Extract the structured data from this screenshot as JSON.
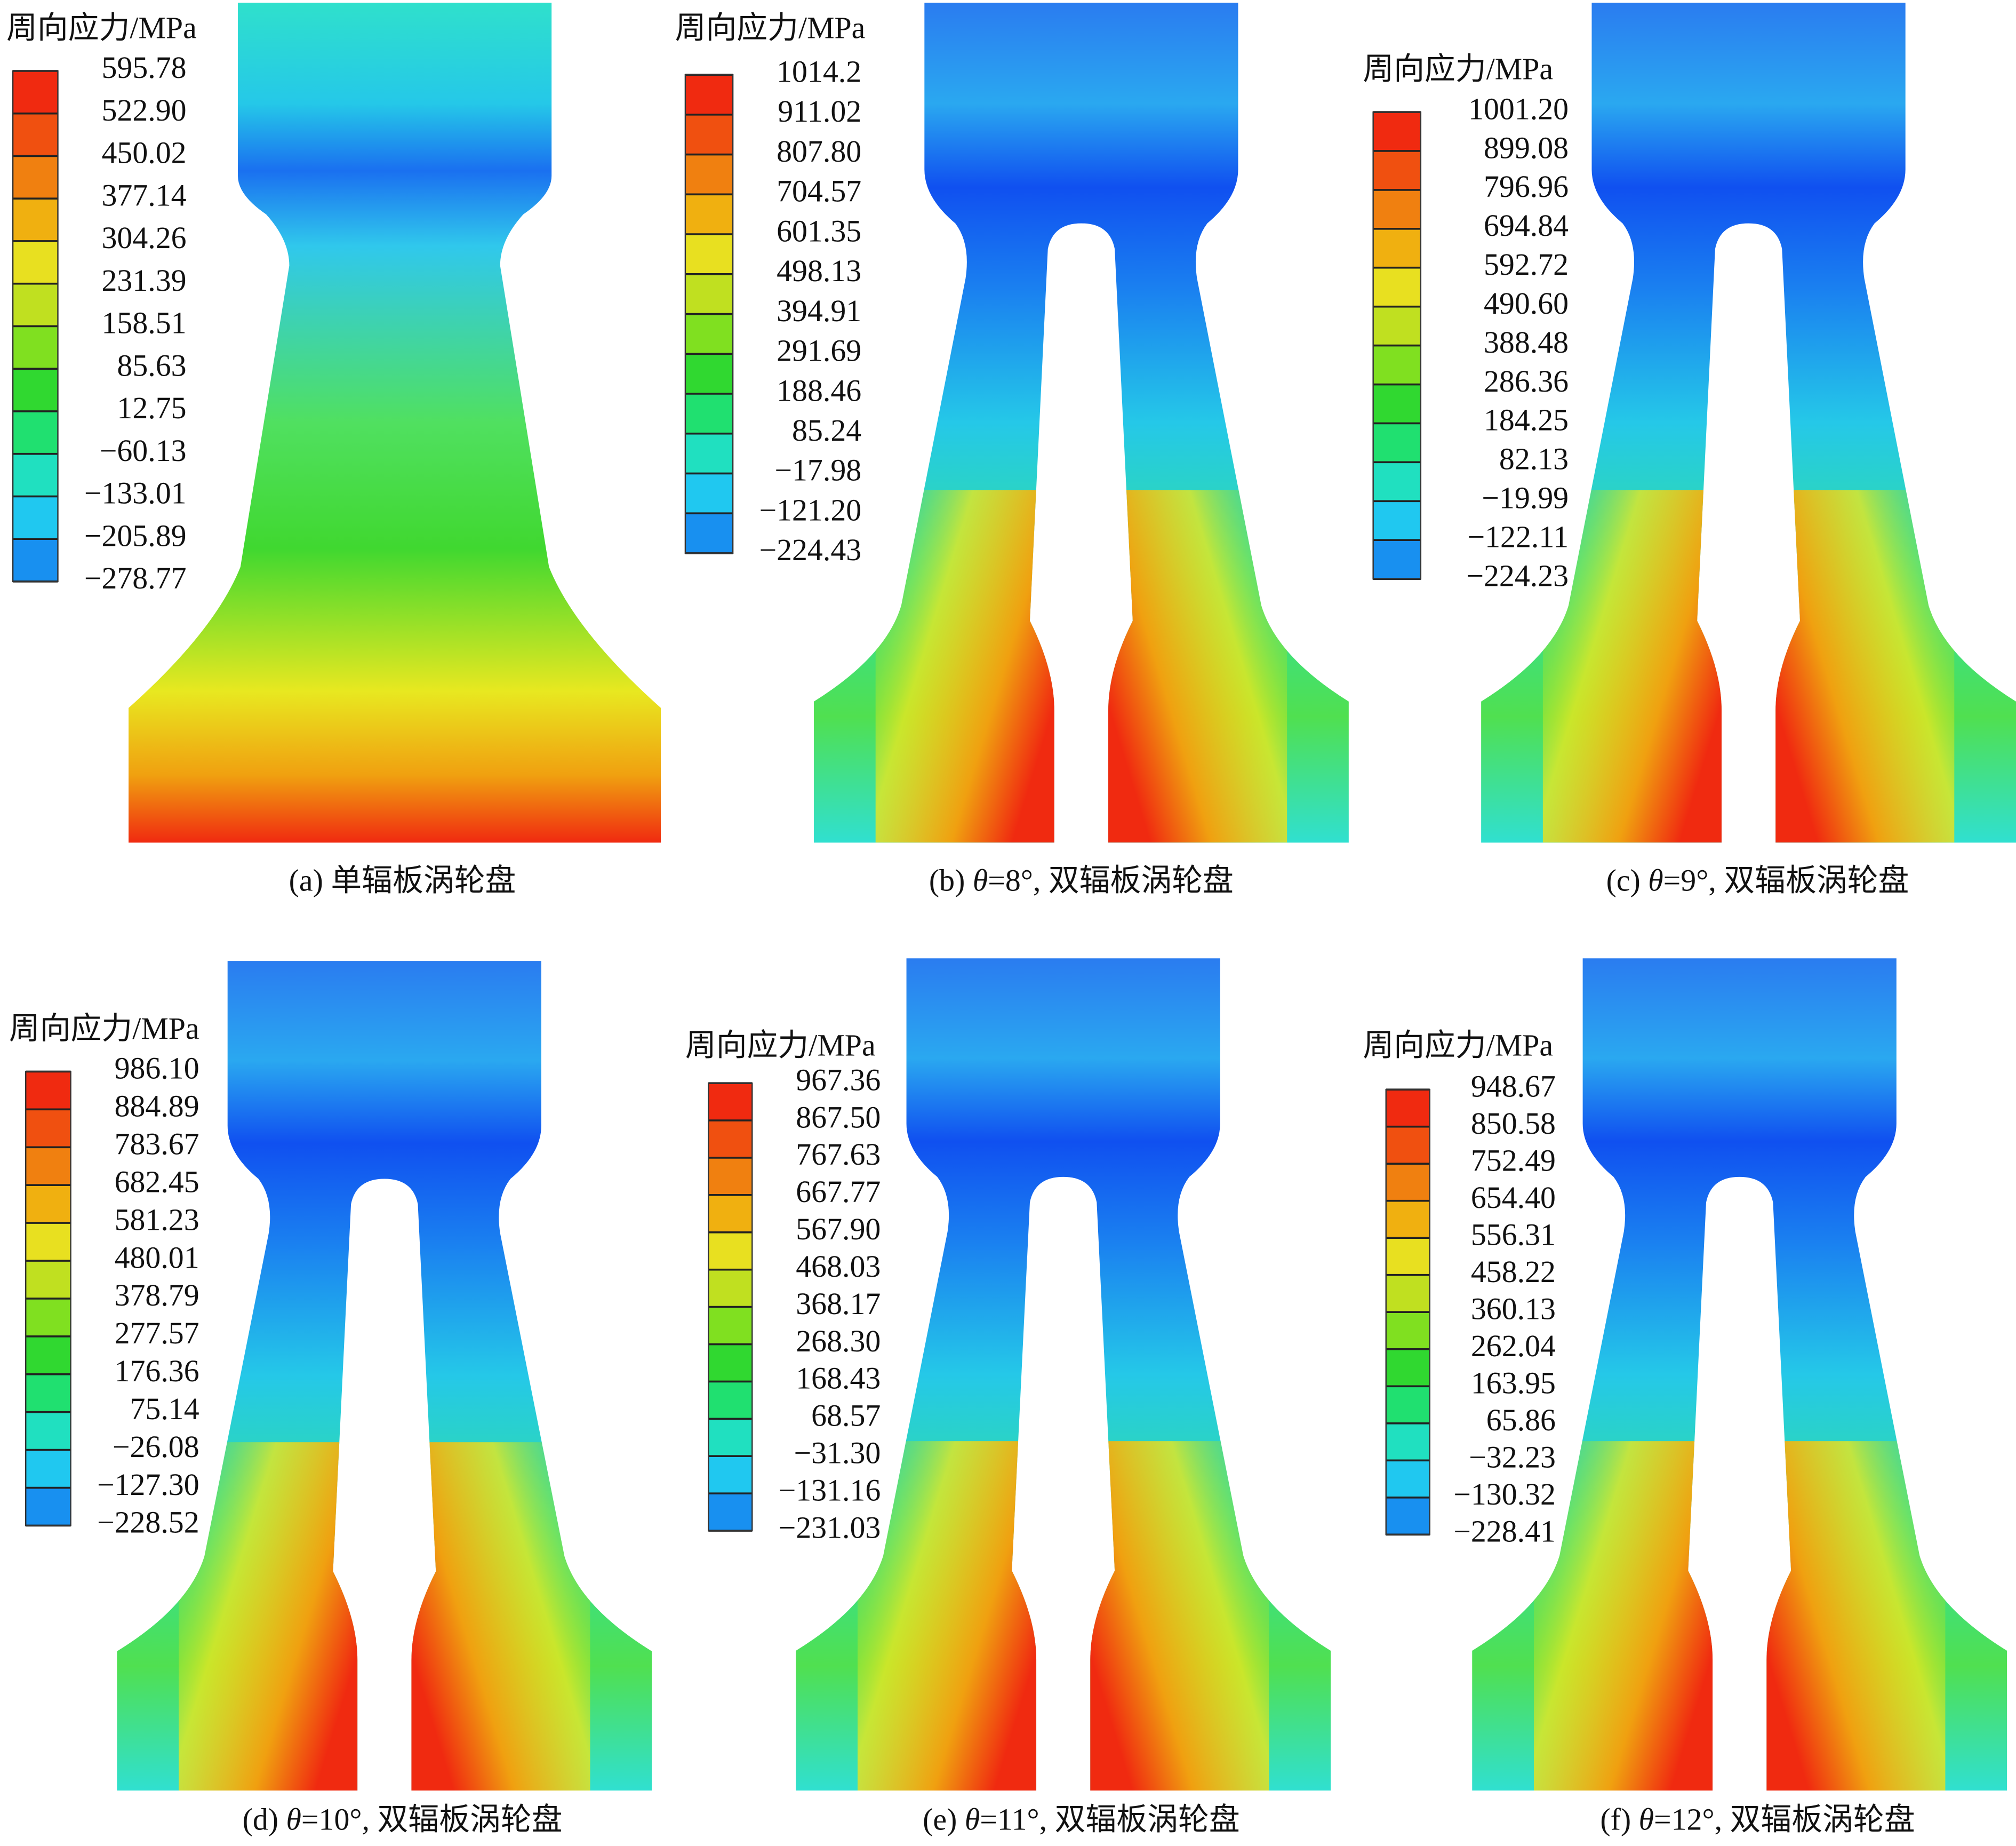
{
  "panels": [
    {
      "legend_title": "周向应力/MPa",
      "legend_labels": [
        "595.78",
        "522.90",
        "450.02",
        "377.14",
        "304.26",
        "231.39",
        "158.51",
        "85.63",
        "12.75",
        "−60.13",
        "−133.01",
        "−205.89",
        "−278.77"
      ],
      "caption": {
        "prefix": "(a) 单辐板涡轮盘"
      }
    },
    {
      "legend_title": "周向应力/MPa",
      "legend_labels": [
        "1014.2",
        "911.02",
        "807.80",
        "704.57",
        "601.35",
        "498.13",
        "394.91",
        "291.69",
        "188.46",
        "85.24",
        "−17.98",
        "−121.20",
        "−224.43"
      ],
      "caption": {
        "prefix": "(b) ",
        "symbol": "θ",
        "suffix": "=8°, 双辐板涡轮盘"
      }
    },
    {
      "legend_title": "周向应力/MPa",
      "legend_labels": [
        "1001.20",
        "899.08",
        "796.96",
        "694.84",
        "592.72",
        "490.60",
        "388.48",
        "286.36",
        "184.25",
        "82.13",
        "−19.99",
        "−122.11",
        "−224.23"
      ],
      "caption": {
        "prefix": "(c) ",
        "symbol": "θ",
        "suffix": "=9°, 双辐板涡轮盘"
      }
    },
    {
      "legend_title": "周向应力/MPa",
      "legend_labels": [
        "986.10",
        "884.89",
        "783.67",
        "682.45",
        "581.23",
        "480.01",
        "378.79",
        "277.57",
        "176.36",
        "75.14",
        "−26.08",
        "−127.30",
        "−228.52"
      ],
      "caption": {
        "prefix": "(d) ",
        "symbol": "θ",
        "suffix": "=10°, 双辐板涡轮盘"
      }
    },
    {
      "legend_title": "周向应力/MPa",
      "legend_labels": [
        "967.36",
        "867.50",
        "767.63",
        "667.77",
        "567.90",
        "468.03",
        "368.17",
        "268.30",
        "168.43",
        "68.57",
        "−31.30",
        "−131.16",
        "−231.03"
      ],
      "caption": {
        "prefix": "(e) ",
        "symbol": "θ",
        "suffix": "=11°, 双辐板涡轮盘"
      }
    },
    {
      "legend_title": "周向应力/MPa",
      "legend_labels": [
        "948.67",
        "850.58",
        "752.49",
        "654.40",
        "556.31",
        "458.22",
        "360.13",
        "262.04",
        "163.95",
        "65.86",
        "−32.23",
        "−130.32",
        "−228.41"
      ],
      "caption": {
        "prefix": "(f) ",
        "symbol": "θ",
        "suffix": "=12°, 双辐板涡轮盘"
      }
    }
  ]
}
